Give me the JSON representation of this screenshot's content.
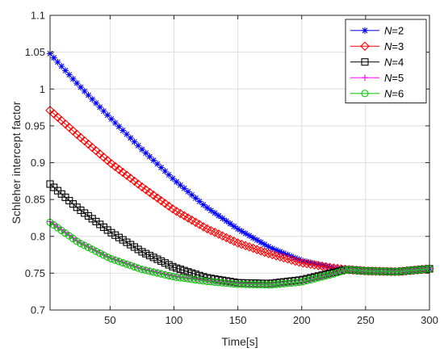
{
  "chart_data": {
    "type": "line",
    "title": "",
    "xlabel": "Time[s]",
    "ylabel": "Schleher intercept factor",
    "xlim": [
      3,
      300
    ],
    "ylim": [
      0.7,
      1.1
    ],
    "xticks": [
      50,
      100,
      150,
      200,
      250,
      300
    ],
    "xtick_labels": [
      "50",
      "100",
      "150",
      "200",
      "250",
      "300"
    ],
    "yticks": [
      0.7,
      0.75,
      0.8,
      0.85,
      0.9,
      0.95,
      1,
      1.05,
      1.1
    ],
    "ytick_labels": [
      "0.7",
      "0.75",
      "0.8",
      "0.85",
      "0.9",
      "0.95",
      "1",
      "1.05",
      "1.1"
    ],
    "grid": true,
    "legend_position": "top-right",
    "series": [
      {
        "name": "N=2",
        "label_var": "N",
        "label_value": "=2",
        "color": "#0000ff",
        "marker": "asterisk",
        "x": [
          3,
          25,
          50,
          75,
          100,
          125,
          150,
          175,
          200,
          225,
          235,
          250,
          275,
          300
        ],
        "y": [
          1.048,
          1.006,
          0.961,
          0.918,
          0.877,
          0.84,
          0.81,
          0.785,
          0.767,
          0.757,
          0.755,
          0.753,
          0.752,
          0.756
        ]
      },
      {
        "name": "N=3",
        "label_var": "N",
        "label_value": "=3",
        "color": "#ff0000",
        "marker": "diamond",
        "x": [
          3,
          25,
          50,
          75,
          100,
          125,
          150,
          175,
          200,
          225,
          235,
          250,
          275,
          300
        ],
        "y": [
          0.971,
          0.937,
          0.9,
          0.867,
          0.836,
          0.811,
          0.791,
          0.776,
          0.764,
          0.757,
          0.755,
          0.753,
          0.752,
          0.756
        ]
      },
      {
        "name": "N=4",
        "label_var": "N",
        "label_value": "=4",
        "color": "#000000",
        "marker": "square",
        "x": [
          3,
          25,
          50,
          75,
          100,
          125,
          150,
          175,
          200,
          225,
          235,
          250,
          275,
          300
        ],
        "y": [
          0.871,
          0.838,
          0.806,
          0.779,
          0.758,
          0.744,
          0.737,
          0.736,
          0.741,
          0.751,
          0.755,
          0.753,
          0.752,
          0.756
        ]
      },
      {
        "name": "N=5",
        "label_var": "N",
        "label_value": "=5",
        "color": "#ff00ff",
        "marker": "plus",
        "x": [
          3,
          25,
          50,
          75,
          100,
          125,
          150,
          175,
          200,
          225,
          235,
          250,
          275,
          300
        ],
        "y": [
          0.82,
          0.793,
          0.771,
          0.756,
          0.746,
          0.74,
          0.736,
          0.734,
          0.738,
          0.749,
          0.755,
          0.753,
          0.752,
          0.756
        ]
      },
      {
        "name": "N=6",
        "label_var": "N",
        "label_value": "=6",
        "color": "#00cc00",
        "marker": "circle",
        "x": [
          3,
          25,
          50,
          75,
          100,
          125,
          150,
          175,
          200,
          225,
          235,
          250,
          275,
          300
        ],
        "y": [
          0.819,
          0.792,
          0.77,
          0.755,
          0.745,
          0.739,
          0.735,
          0.734,
          0.738,
          0.749,
          0.755,
          0.753,
          0.752,
          0.756
        ]
      }
    ]
  }
}
